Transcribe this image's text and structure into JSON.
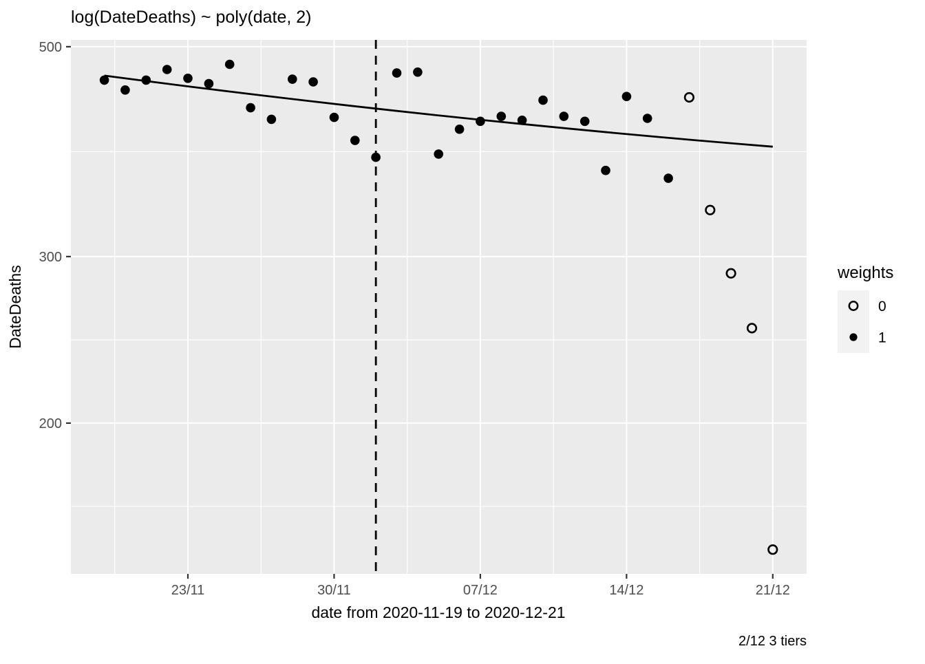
{
  "title": "log(DateDeaths) ~ poly(date, 2)",
  "caption": "2/12 3 tiers",
  "x_axis": {
    "label": "date from 2020-11-19 to 2020-12-21",
    "tick_labels": [
      "23/11",
      "30/11",
      "07/12",
      "14/12",
      "21/12"
    ]
  },
  "y_axis": {
    "label": "DateDeaths",
    "tick_labels": [
      "500",
      "300",
      "200"
    ]
  },
  "legend": {
    "title": "weights",
    "items": [
      {
        "label": "0",
        "marker": "open-circle"
      },
      {
        "label": "1",
        "marker": "filled-circle"
      }
    ]
  },
  "colors": {
    "panel_background": "#EBEBEB",
    "gridline": "#FFFFFF",
    "tick_mark": "#333333",
    "tick_text": "#4D4D4D",
    "point": "#000000",
    "smooth_line": "#000000",
    "vline": "#000000",
    "legend_key_background": "#F2F2F2"
  },
  "chart_data": {
    "type": "scatter",
    "title": "log(DateDeaths) ~ poly(date, 2)",
    "xlabel": "date from 2020-11-19 to 2020-12-21",
    "ylabel": "DateDeaths",
    "caption": "2/12 3 tiers",
    "y_scale": "log",
    "x_range_dates": [
      "2020-11-19",
      "2020-12-21"
    ],
    "y_tick_values": [
      500,
      300,
      200
    ],
    "x_tick_dates": [
      "2020-11-23",
      "2020-11-30",
      "2020-12-07",
      "2020-12-14",
      "2020-12-21"
    ],
    "grid": "major-and-minor",
    "legend_position": "right",
    "vline": {
      "date": "2020-12-02",
      "style": "dashed",
      "annotation": "2/12 3 tiers"
    },
    "smooth": {
      "model": "log(DateDeaths) ~ poly(date, 2)",
      "start": {
        "date": "2020-11-19",
        "value": 466
      },
      "mid": {
        "date": "2020-12-05",
        "value": 423
      },
      "end": {
        "date": "2020-12-21",
        "value": 392
      }
    },
    "series": [
      {
        "name": "weight 1 (filled)",
        "weight": 1,
        "points": [
          {
            "date": "2020-11-19",
            "value": 461
          },
          {
            "date": "2020-11-20",
            "value": 450
          },
          {
            "date": "2020-11-21",
            "value": 461
          },
          {
            "date": "2020-11-22",
            "value": 473
          },
          {
            "date": "2020-11-23",
            "value": 463
          },
          {
            "date": "2020-11-24",
            "value": 457
          },
          {
            "date": "2020-11-25",
            "value": 479
          },
          {
            "date": "2020-11-26",
            "value": 431
          },
          {
            "date": "2020-11-27",
            "value": 419
          },
          {
            "date": "2020-11-28",
            "value": 462
          },
          {
            "date": "2020-11-29",
            "value": 459
          },
          {
            "date": "2020-11-30",
            "value": 421
          },
          {
            "date": "2020-12-01",
            "value": 398
          },
          {
            "date": "2020-12-02",
            "value": 382
          },
          {
            "date": "2020-12-03",
            "value": 469
          },
          {
            "date": "2020-12-04",
            "value": 470
          },
          {
            "date": "2020-12-05",
            "value": 385
          },
          {
            "date": "2020-12-06",
            "value": 409
          },
          {
            "date": "2020-12-07",
            "value": 417
          },
          {
            "date": "2020-12-08",
            "value": 422
          },
          {
            "date": "2020-12-09",
            "value": 418
          },
          {
            "date": "2020-12-10",
            "value": 439
          },
          {
            "date": "2020-12-11",
            "value": 422
          },
          {
            "date": "2020-12-12",
            "value": 417
          },
          {
            "date": "2020-12-13",
            "value": 370
          },
          {
            "date": "2020-12-14",
            "value": 443
          },
          {
            "date": "2020-12-15",
            "value": 420
          },
          {
            "date": "2020-12-16",
            "value": 363
          }
        ]
      },
      {
        "name": "weight 0 (open)",
        "weight": 0,
        "points": [
          {
            "date": "2020-12-17",
            "value": 442
          },
          {
            "date": "2020-12-18",
            "value": 336
          },
          {
            "date": "2020-12-19",
            "value": 288
          },
          {
            "date": "2020-12-20",
            "value": 252
          },
          {
            "date": "2020-12-21",
            "value": 147
          }
        ]
      }
    ]
  }
}
